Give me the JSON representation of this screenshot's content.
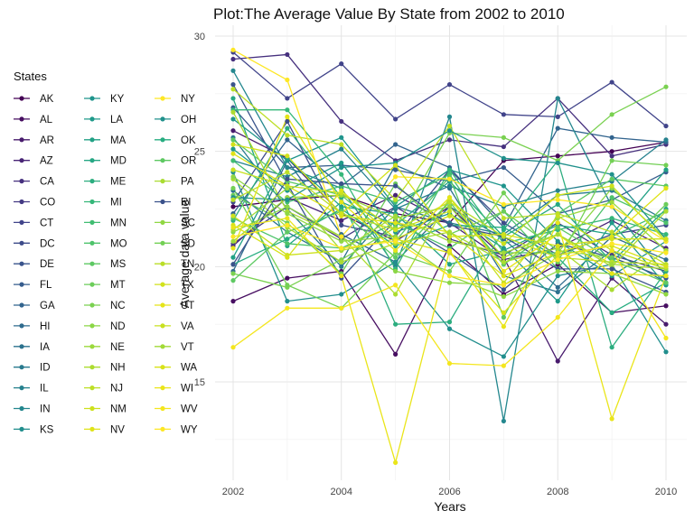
{
  "chart_data": {
    "type": "line",
    "title": "Plot:The Average Value By State from 2002 to 2010",
    "xlabel": "Years",
    "ylabel": "Average data value",
    "legend_title": "States",
    "legend_position": "left",
    "grid": true,
    "xlim": [
      2002,
      2010
    ],
    "ylim": [
      10,
      30
    ],
    "x_ticks": [
      2002,
      2004,
      2006,
      2008,
      2010
    ],
    "y_ticks": [
      15,
      20,
      25,
      30
    ],
    "x": [
      2002,
      2003,
      2004,
      2005,
      2006,
      2007,
      2008,
      2009,
      2010
    ],
    "series": [
      {
        "name": "AK",
        "color": "#440154",
        "values": [
          22.6,
          22.9,
          23.1,
          22.3,
          21.9,
          24.6,
          24.8,
          25.0,
          25.4
        ]
      },
      {
        "name": "AL",
        "color": "#470e61",
        "values": [
          18.5,
          19.5,
          19.8,
          16.2,
          20.9,
          18.8,
          20.1,
          18.0,
          18.3
        ]
      },
      {
        "name": "AR",
        "color": "#481b6d",
        "values": [
          25.9,
          24.7,
          22.3,
          21.1,
          22.6,
          20.4,
          15.9,
          19.5,
          17.5
        ]
      },
      {
        "name": "AZ",
        "color": "#482576",
        "values": [
          20.9,
          23.0,
          22.0,
          23.1,
          21.9,
          20.3,
          20.8,
          22.0,
          20.8
        ]
      },
      {
        "name": "CA",
        "color": "#46307e",
        "values": [
          29.0,
          29.2,
          26.3,
          24.6,
          25.5,
          25.2,
          27.3,
          24.8,
          25.3
        ]
      },
      {
        "name": "CO",
        "color": "#443a83",
        "values": [
          21.0,
          22.6,
          21.2,
          22.6,
          21.2,
          20.5,
          21.9,
          20.5,
          19.8
        ]
      },
      {
        "name": "CT",
        "color": "#41448a",
        "values": [
          29.3,
          27.3,
          28.8,
          26.4,
          27.9,
          26.6,
          26.5,
          28.0,
          26.1
        ]
      },
      {
        "name": "DC",
        "color": "#3e4c8a",
        "values": [
          22.8,
          26.3,
          21.8,
          21.3,
          24.2,
          21.9,
          20.5,
          21.4,
          21.8
        ]
      },
      {
        "name": "DE",
        "color": "#3a548c",
        "values": [
          27.9,
          23.6,
          19.5,
          22.0,
          20.6,
          19.0,
          21.0,
          20.4,
          19.5
        ]
      },
      {
        "name": "FL",
        "color": "#365c8d",
        "values": [
          26.9,
          24.3,
          24.4,
          24.2,
          23.7,
          24.3,
          22.3,
          22.9,
          24.1
        ]
      },
      {
        "name": "GA",
        "color": "#32648e",
        "values": [
          22.3,
          25.5,
          23.5,
          25.3,
          24.3,
          21.7,
          26.0,
          25.6,
          25.4
        ]
      },
      {
        "name": "HI",
        "color": "#2f6b8e",
        "values": [
          19.8,
          24.6,
          21.4,
          20.2,
          22.6,
          21.2,
          19.1,
          21.3,
          20.3
        ]
      },
      {
        "name": "IA",
        "color": "#2c728e",
        "values": [
          23.3,
          21.5,
          20.2,
          24.4,
          23.4,
          19.6,
          18.9,
          20.7,
          19.3
        ]
      },
      {
        "name": "ID",
        "color": "#297a8e",
        "values": [
          25.6,
          22.5,
          20.0,
          22.6,
          21.9,
          21.4,
          23.1,
          23.3,
          22.0
        ]
      },
      {
        "name": "IL",
        "color": "#26818e",
        "values": [
          24.6,
          23.9,
          25.1,
          22.5,
          23.5,
          22.6,
          23.3,
          23.7,
          25.5
        ]
      },
      {
        "name": "IN",
        "color": "#24878e",
        "values": [
          28.5,
          24.3,
          23.4,
          20.0,
          26.5,
          13.3,
          27.3,
          22.6,
          19.6
        ]
      },
      {
        "name": "KS",
        "color": "#218e8d",
        "values": [
          24.1,
          18.5,
          18.8,
          20.2,
          17.3,
          16.1,
          19.6,
          20.1,
          16.3
        ]
      },
      {
        "name": "KY",
        "color": "#1f948c",
        "values": [
          26.4,
          24.6,
          25.6,
          22.6,
          24.2,
          23.5,
          21.1,
          19.6,
          21.1
        ]
      },
      {
        "name": "LA",
        "color": "#1f9a8a",
        "values": [
          25.1,
          23.3,
          24.5,
          21.5,
          22.3,
          20.8,
          18.5,
          21.9,
          19.2
        ]
      },
      {
        "name": "MA",
        "color": "#21a185",
        "values": [
          20.4,
          24.7,
          22.6,
          22.3,
          20.1,
          20.7,
          21.8,
          21.4,
          24.2
        ]
      },
      {
        "name": "MD",
        "color": "#26a784",
        "values": [
          27.3,
          20.9,
          22.8,
          21.8,
          23.7,
          21.3,
          22.7,
          20.2,
          22.5
        ]
      },
      {
        "name": "ME",
        "color": "#2cad7f",
        "values": [
          22.0,
          26.0,
          23.0,
          17.5,
          17.6,
          21.6,
          24.6,
          16.5,
          19.8
        ]
      },
      {
        "name": "MI",
        "color": "#35b779",
        "values": [
          26.8,
          26.8,
          24.0,
          19.9,
          24.2,
          21.0,
          21.6,
          22.1,
          21.4
        ]
      },
      {
        "name": "MN",
        "color": "#41bd72",
        "values": [
          24.6,
          22.8,
          23.5,
          22.8,
          24.0,
          20.6,
          20.6,
          21.3,
          22.4
        ]
      },
      {
        "name": "MO",
        "color": "#4ec36b",
        "values": [
          22.1,
          21.0,
          20.8,
          21.9,
          20.8,
          22.4,
          19.9,
          23.0,
          21.9
        ]
      },
      {
        "name": "MS",
        "color": "#5dc863",
        "values": [
          25.5,
          23.7,
          23.1,
          21.1,
          23.9,
          17.8,
          22.3,
          23.8,
          23.5
        ]
      },
      {
        "name": "MT",
        "color": "#6ccd5a",
        "values": [
          23.1,
          21.9,
          19.7,
          23.6,
          21.4,
          22.4,
          20.7,
          20.4,
          22.7
        ]
      },
      {
        "name": "NC",
        "color": "#7ad151",
        "values": [
          19.7,
          19.1,
          20.3,
          21.7,
          25.8,
          25.6,
          24.6,
          26.6,
          27.8
        ]
      },
      {
        "name": "ND",
        "color": "#8bd646",
        "values": [
          21.5,
          22.6,
          21.3,
          19.8,
          19.3,
          19.2,
          20.6,
          23.4,
          21.2
        ]
      },
      {
        "name": "NE",
        "color": "#9bd93c",
        "values": [
          21.1,
          23.0,
          23.1,
          22.1,
          22.6,
          20.1,
          22.1,
          22.8,
          20.7
        ]
      },
      {
        "name": "NH",
        "color": "#acdc30",
        "values": [
          26.7,
          22.4,
          21.3,
          18.8,
          23.0,
          20.4,
          21.4,
          20.0,
          22.4
        ]
      },
      {
        "name": "NJ",
        "color": "#bddf26",
        "values": [
          27.7,
          25.7,
          25.3,
          22.9,
          26.1,
          22.1,
          22.3,
          21.5,
          20.1
        ]
      },
      {
        "name": "NM",
        "color": "#cde11d",
        "values": [
          22.2,
          20.5,
          20.7,
          21.2,
          22.2,
          21.0,
          23.1,
          23.5,
          21.1
        ]
      },
      {
        "name": "NV",
        "color": "#dfe318",
        "values": [
          24.9,
          23.5,
          22.2,
          21.9,
          21.5,
          19.6,
          20.6,
          21.3,
          23.4
        ]
      },
      {
        "name": "NY",
        "color": "#fde725",
        "values": [
          29.4,
          28.1,
          21.3,
          23.9,
          23.8,
          22.7,
          22.9,
          22.6,
          21.1
        ]
      },
      {
        "name": "OH",
        "color": "#21918c",
        "values": [
          23.0,
          22.9,
          24.3,
          24.5,
          25.9,
          24.7,
          24.5,
          24.0,
          21.2
        ]
      },
      {
        "name": "OK",
        "color": "#27ad81",
        "values": [
          20.1,
          21.2,
          22.5,
          20.9,
          21.8,
          21.7,
          20.4,
          18.0,
          19.3
        ]
      },
      {
        "name": "OR",
        "color": "#5ec962",
        "values": [
          19.4,
          21.5,
          22.4,
          20.4,
          22.8,
          20.1,
          21.7,
          20.3,
          19.3
        ]
      },
      {
        "name": "PA",
        "color": "#aadc32",
        "values": [
          23.8,
          21.7,
          20.2,
          21.0,
          21.5,
          20.2,
          20.8,
          19.0,
          20.7
        ]
      },
      {
        "name": "RI",
        "color": "#3b528b",
        "values": [
          20.1,
          23.8,
          23.6,
          23.5,
          21.8,
          21.3,
          19.9,
          19.9,
          18.9
        ]
      },
      {
        "name": "SC",
        "color": "#90d743",
        "values": [
          23.9,
          22.3,
          21.1,
          21.3,
          19.6,
          18.7,
          19.8,
          19.7,
          18.8
        ]
      },
      {
        "name": "SD",
        "color": "#73d055",
        "values": [
          23.4,
          19.2,
          18.2,
          20.6,
          19.8,
          23.2,
          20.2,
          24.6,
          24.4
        ]
      },
      {
        "name": "TN",
        "color": "#bade28",
        "values": [
          22.9,
          24.1,
          22.3,
          21.6,
          22.8,
          21.3,
          20.4,
          20.2,
          20.1
        ]
      },
      {
        "name": "TX",
        "color": "#d2e21b",
        "values": [
          25.3,
          24.8,
          22.3,
          24.4,
          21.3,
          21.4,
          20.9,
          21.2,
          21.2
        ]
      },
      {
        "name": "UT",
        "color": "#e5e419",
        "values": [
          20.8,
          26.5,
          22.8,
          20.7,
          23.0,
          19.8,
          21.4,
          19.7,
          19.6
        ]
      },
      {
        "name": "VA",
        "color": "#c8e020",
        "values": [
          24.2,
          23.5,
          23.2,
          21.6,
          22.4,
          19.3,
          22.2,
          20.7,
          19.9
        ]
      },
      {
        "name": "VT",
        "color": "#a2da37",
        "values": [
          21.6,
          23.4,
          20.7,
          22.2,
          21.1,
          20.6,
          21.4,
          20.1,
          19.9
        ]
      },
      {
        "name": "WA",
        "color": "#d8e219",
        "values": [
          21.8,
          20.4,
          23.3,
          21.2,
          20.6,
          18.0,
          20.5,
          20.9,
          20.0
        ]
      },
      {
        "name": "WI",
        "color": "#eae51a",
        "values": [
          21.7,
          22.1,
          19.6,
          11.5,
          20.7,
          17.4,
          21.9,
          13.4,
          19.6
        ]
      },
      {
        "name": "WV",
        "color": "#f4e61e",
        "values": [
          16.5,
          18.2,
          18.2,
          19.2,
          15.8,
          15.7,
          17.8,
          20.7,
          16.9
        ]
      },
      {
        "name": "WY",
        "color": "#fde725",
        "values": [
          21.3,
          21.8,
          20.8,
          21.1,
          19.6,
          19.2,
          20.3,
          21.0,
          20.6
        ]
      }
    ]
  }
}
